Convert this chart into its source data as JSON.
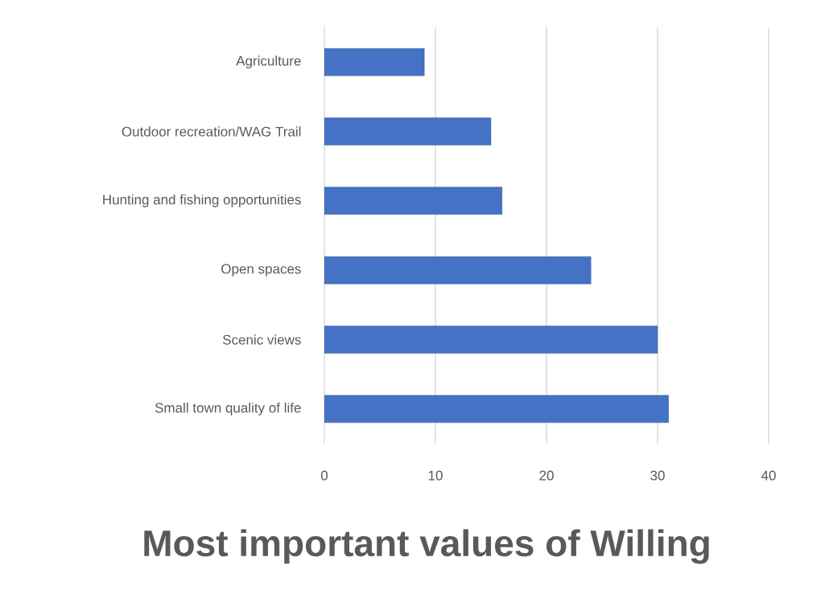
{
  "chart_data": {
    "type": "bar",
    "orientation": "horizontal",
    "title": "Most important values of Willing",
    "categories": [
      "Agriculture",
      "Outdoor recreation/WAG Trail",
      "Hunting and fishing opportunities",
      "Open spaces",
      "Scenic views",
      "Small town quality of life"
    ],
    "values": [
      9,
      15,
      16,
      24,
      30,
      31
    ],
    "color": "#4472c4",
    "xlim": [
      0,
      40
    ],
    "xticks": [
      0,
      10,
      20,
      30,
      40
    ],
    "grid": "x"
  }
}
